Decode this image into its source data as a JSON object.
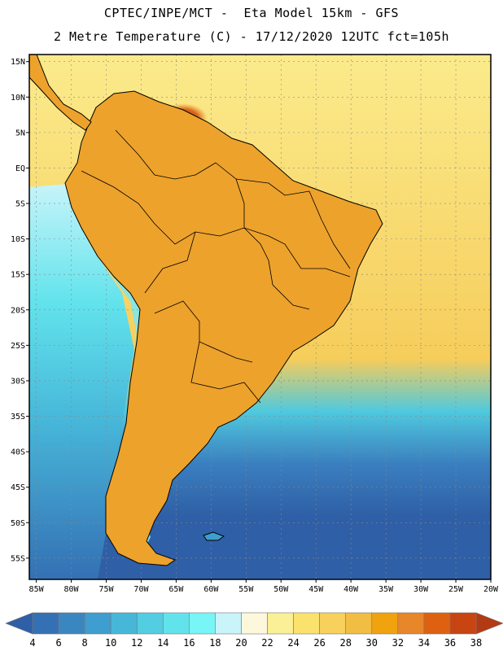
{
  "header": {
    "title_line1": "CPTEC/INPE/MCT -  Eta Model 15km - GFS",
    "title_line2": "2 Metre Temperature (C) - 17/12/2020 12UTC fct=105h"
  },
  "map": {
    "lat_labels": [
      "15N",
      "10N",
      "5N",
      "EQ",
      "5S",
      "10S",
      "15S",
      "20S",
      "25S",
      "30S",
      "35S",
      "40S",
      "45S",
      "50S",
      "55S"
    ],
    "lat_values": [
      15,
      10,
      5,
      0,
      -5,
      -10,
      -15,
      -20,
      -25,
      -30,
      -35,
      -40,
      -45,
      -50,
      -55
    ],
    "lon_labels": [
      "85W",
      "80W",
      "75W",
      "70W",
      "65W",
      "60W",
      "55W",
      "50W",
      "45W",
      "40W",
      "35W",
      "30W",
      "25W",
      "20W"
    ],
    "lon_values": [
      -85,
      -80,
      -75,
      -70,
      -65,
      -60,
      -55,
      -50,
      -45,
      -40,
      -35,
      -30,
      -25,
      -20
    ],
    "lon_range": [
      -86,
      -20
    ],
    "lat_range": [
      -58,
      16
    ]
  },
  "colorbar": {
    "labels": [
      "4",
      "6",
      "8",
      "10",
      "12",
      "14",
      "16",
      "18",
      "20",
      "22",
      "24",
      "26",
      "28",
      "30",
      "32",
      "34",
      "36",
      "38"
    ],
    "colors": [
      "#2f5fa6",
      "#3470b4",
      "#3a86c1",
      "#3e9ecf",
      "#47b7d9",
      "#52cde2",
      "#62e3ec",
      "#78f5f6",
      "#c8f4fa",
      "#fdf7dc",
      "#fbf096",
      "#fbe26d",
      "#f7d15b",
      "#f1bd43",
      "#f1a30f",
      "#e8862a",
      "#de6111",
      "#c84413",
      "#b33a12"
    ]
  },
  "regions": {
    "land": "#eda22c",
    "hot": "#d8641a",
    "hottest": "#c64a10",
    "ocean_warm": "#f6cd5b",
    "ocean_pale": "#fbeb8c",
    "ocean_cool": "#4fc9de",
    "ocean_cold": "#3a7fbf",
    "ocean_coldest": "#2f5fa6",
    "andes": "#7ee7ee"
  }
}
